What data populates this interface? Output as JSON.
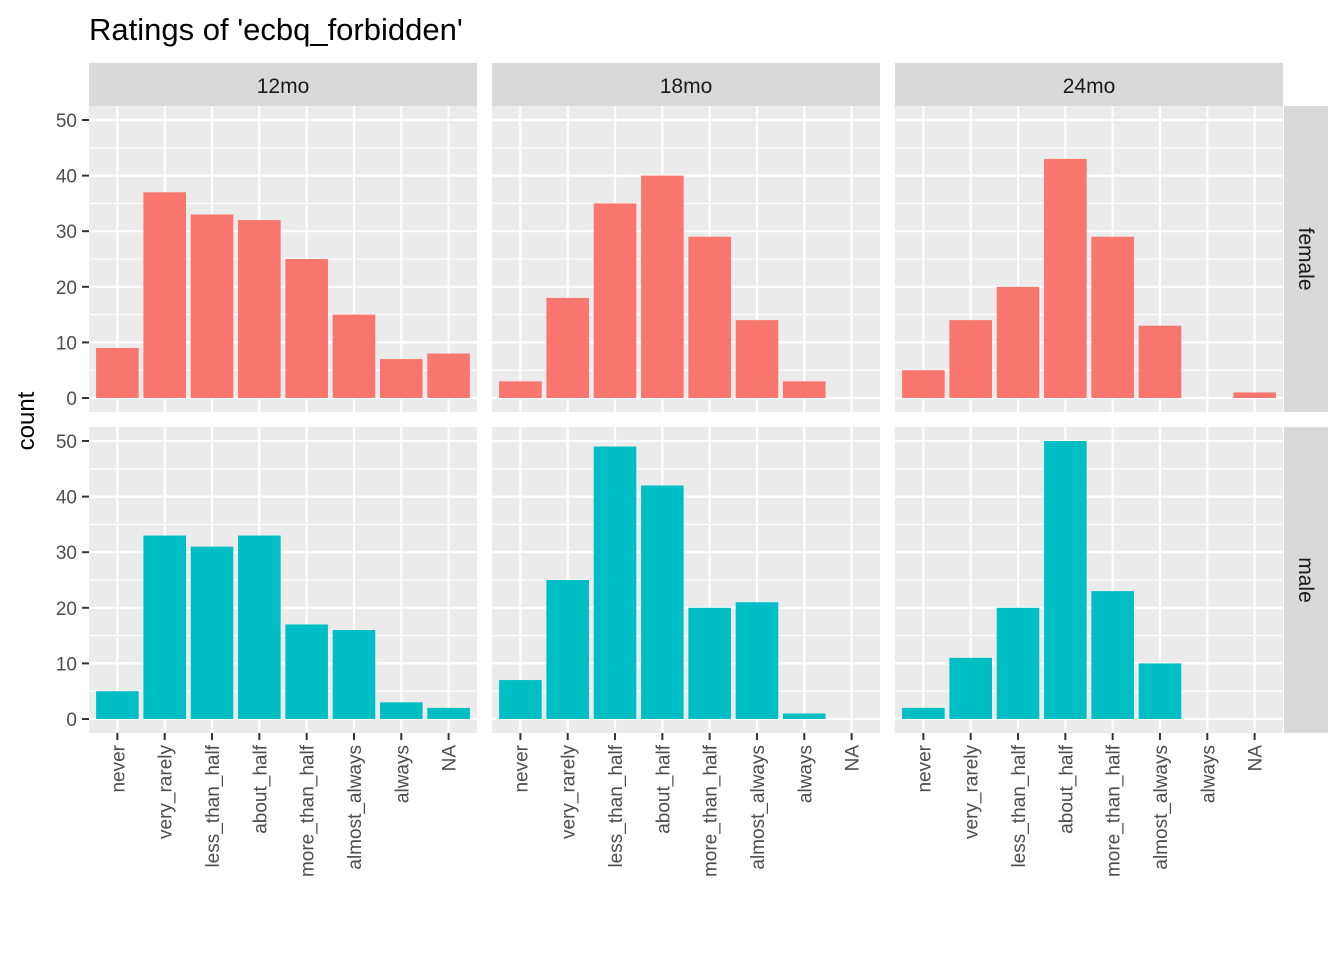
{
  "chart_data": {
    "type": "bar",
    "title": "Ratings of 'ecbq_forbidden'",
    "ylabel": "count",
    "xlabel": "",
    "ylim": [
      0,
      50
    ],
    "yticks": [
      0,
      10,
      20,
      30,
      40,
      50
    ],
    "grid": true,
    "categories": [
      "never",
      "very_rarely",
      "less_than_half",
      "about_half",
      "more_than_half",
      "almost_always",
      "always",
      "NA"
    ],
    "columns": [
      "12mo",
      "18mo",
      "24mo"
    ],
    "rows": [
      "female",
      "male"
    ],
    "colors": {
      "female": "#F8766D",
      "male": "#00BFC4"
    },
    "panels": [
      {
        "col": "12mo",
        "row": "female",
        "values": [
          9,
          37,
          33,
          32,
          25,
          15,
          7,
          8
        ]
      },
      {
        "col": "18mo",
        "row": "female",
        "values": [
          3,
          18,
          35,
          40,
          29,
          14,
          3,
          null
        ]
      },
      {
        "col": "24mo",
        "row": "female",
        "values": [
          5,
          14,
          20,
          43,
          29,
          13,
          null,
          1
        ]
      },
      {
        "col": "12mo",
        "row": "male",
        "values": [
          5,
          33,
          31,
          33,
          17,
          16,
          3,
          2
        ]
      },
      {
        "col": "18mo",
        "row": "male",
        "values": [
          7,
          25,
          49,
          42,
          20,
          21,
          1,
          null
        ]
      },
      {
        "col": "24mo",
        "row": "male",
        "values": [
          2,
          11,
          20,
          50,
          23,
          10,
          null,
          null
        ]
      }
    ]
  }
}
